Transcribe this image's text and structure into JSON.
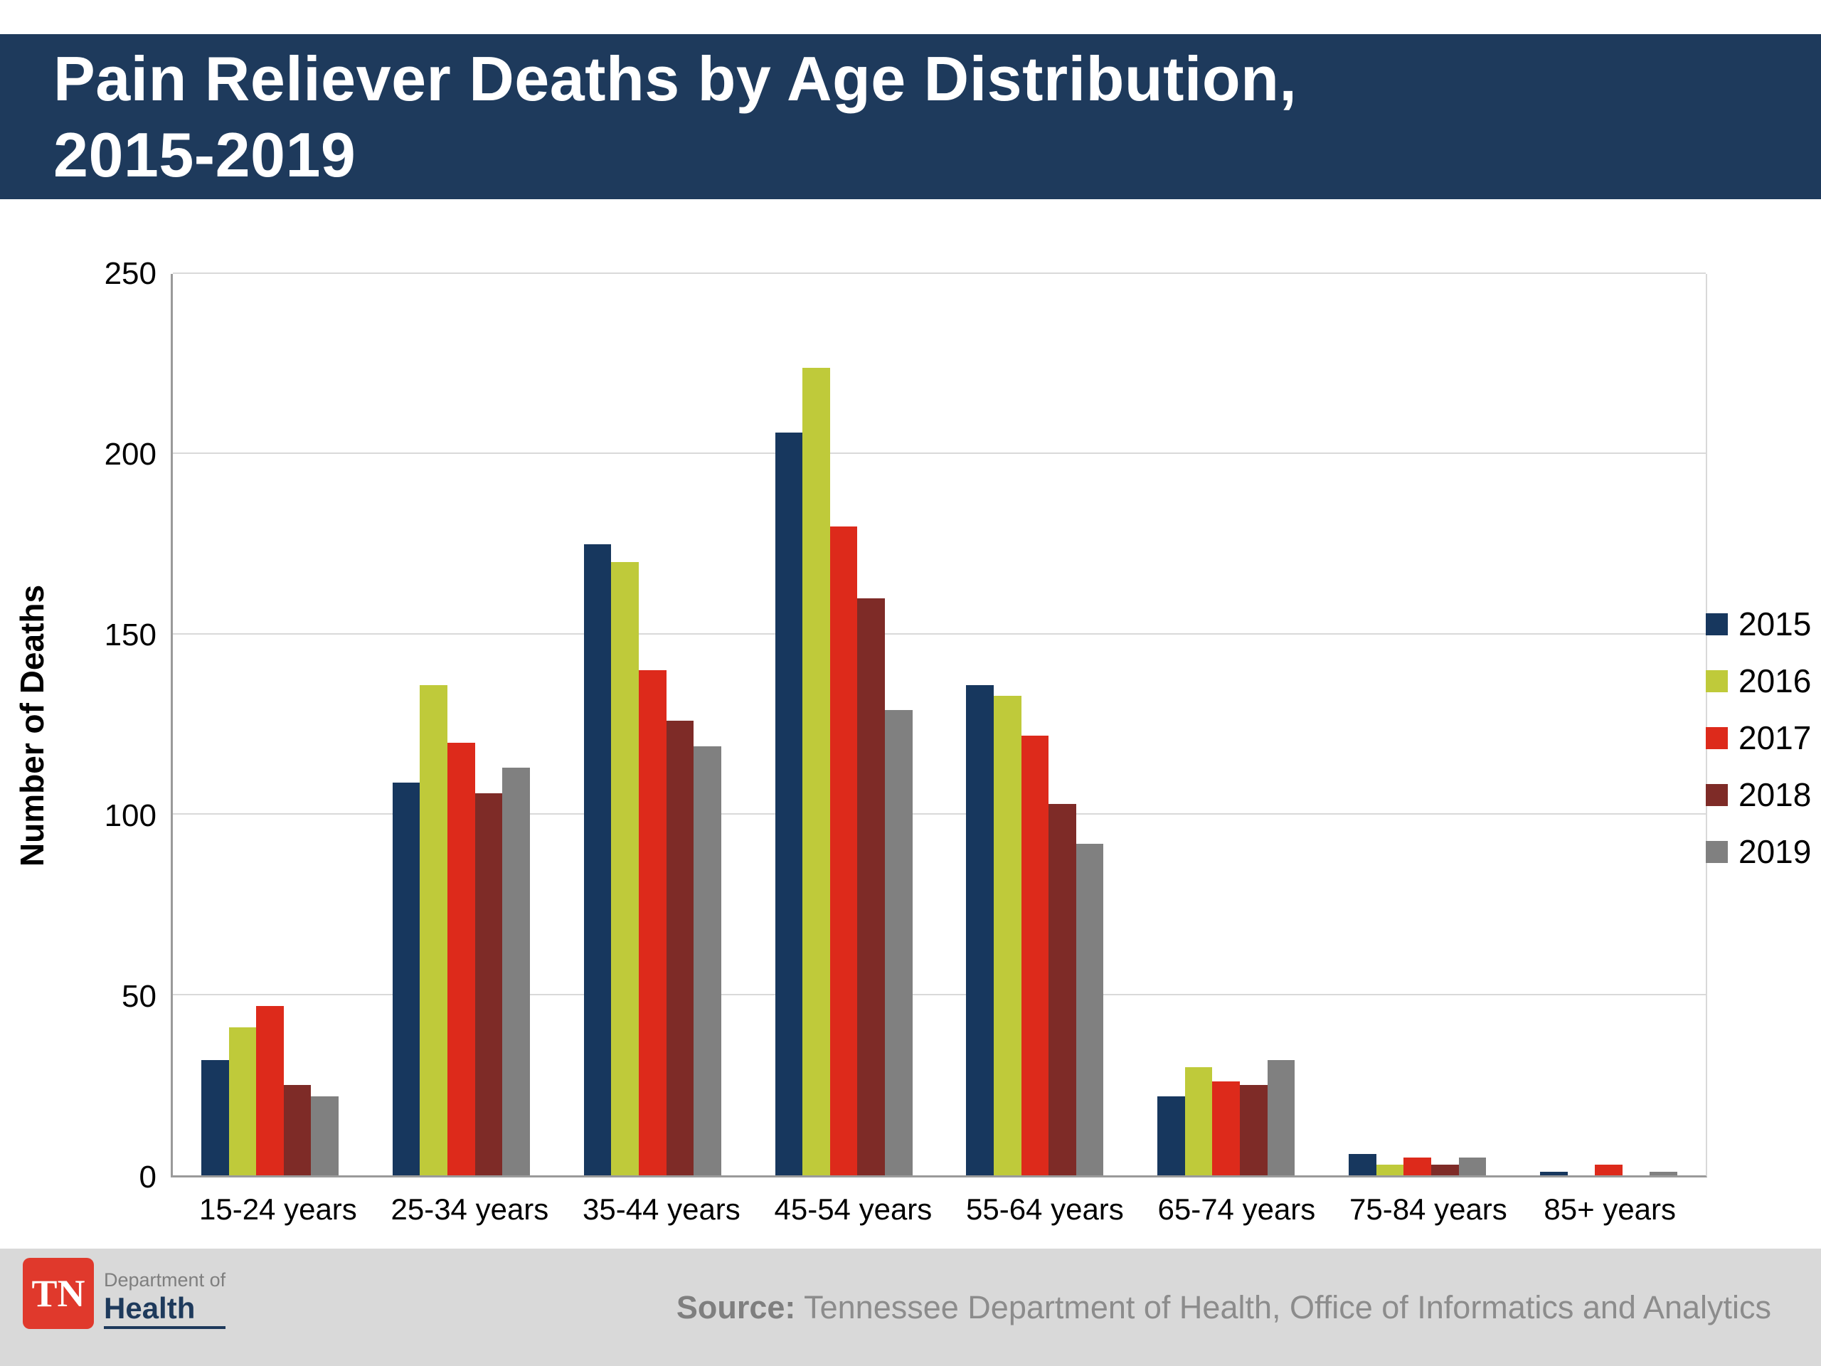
{
  "header": {
    "title_line1": "Pain Reliever Deaths by Age Distribution,",
    "title_line2": "2015-2019"
  },
  "chart_data": {
    "type": "bar",
    "title": "Pain Reliever Deaths by Age Distribution, 2015-2019",
    "xlabel": "",
    "ylabel": "Number of Deaths",
    "ylim": [
      0,
      250
    ],
    "yticks": [
      0,
      50,
      100,
      150,
      200,
      250
    ],
    "grid": true,
    "legend_position": "right",
    "categories": [
      "15-24 years",
      "25-34 years",
      "35-44 years",
      "45-54 years",
      "55-64 years",
      "65-74 years",
      "75-84 years",
      "85+ years"
    ],
    "series": [
      {
        "name": "2015",
        "color": "#17375e",
        "values": [
          32,
          109,
          175,
          206,
          136,
          22,
          6,
          1
        ]
      },
      {
        "name": "2016",
        "color": "#bfca3a",
        "values": [
          41,
          136,
          170,
          224,
          133,
          30,
          3,
          0
        ]
      },
      {
        "name": "2017",
        "color": "#dd2a1b",
        "values": [
          47,
          120,
          140,
          180,
          122,
          26,
          5,
          3
        ]
      },
      {
        "name": "2018",
        "color": "#7e2b27",
        "values": [
          25,
          106,
          126,
          160,
          103,
          25,
          3,
          0
        ]
      },
      {
        "name": "2019",
        "color": "#808080",
        "values": [
          22,
          113,
          119,
          129,
          92,
          32,
          5,
          1
        ]
      }
    ]
  },
  "footer": {
    "source_label": "Source:",
    "source_text": "Tennessee Department of Health, Office of Informatics and Analytics",
    "logo": {
      "tn": "TN",
      "dept": "Department of",
      "health": "Health"
    }
  }
}
